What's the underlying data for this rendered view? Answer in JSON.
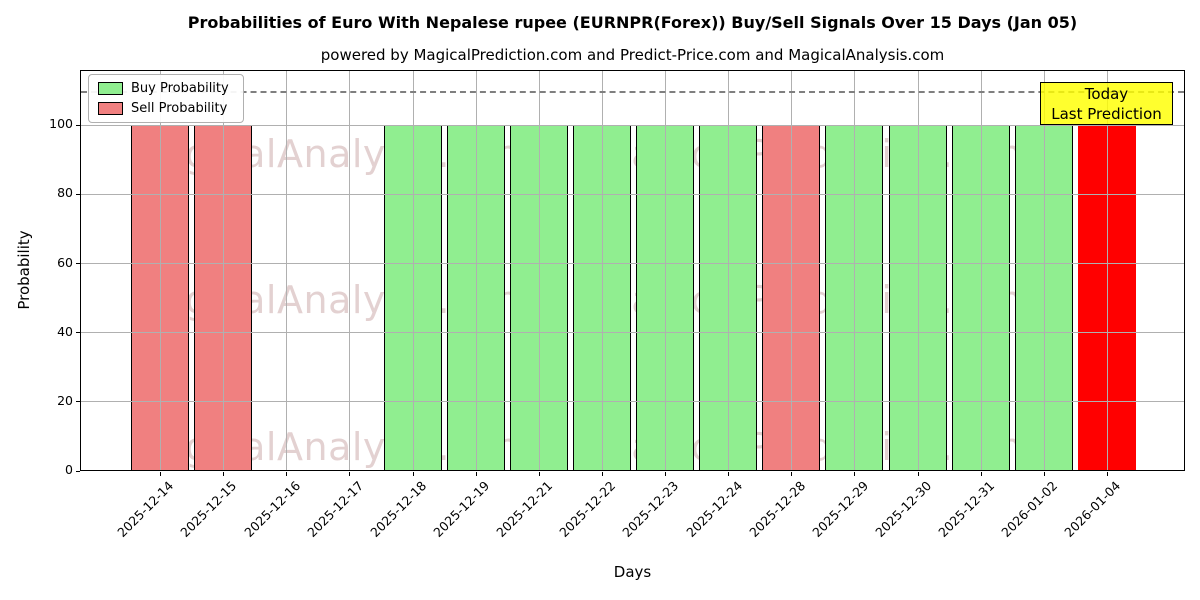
{
  "figure": {
    "title": "Probabilities of Euro With Nepalese rupee (EURNPR(Forex)) Buy/Sell Signals Over 15 Days (Jan 05)",
    "subtitle": "powered by MagicalPrediction.com and Predict-Price.com and MagicalAnalysis.com"
  },
  "legend": {
    "items": [
      {
        "label": "Buy Probability",
        "key": "buy"
      },
      {
        "label": "Sell Probability",
        "key": "sell"
      }
    ]
  },
  "annotation": {
    "line1": "Today",
    "line2": "Last Prediction"
  },
  "watermarks": [
    "MagicalAnalysis.com",
    "MagicalPrediction.com"
  ],
  "chart_data": {
    "type": "bar",
    "title": "Probabilities of Euro With Nepalese rupee (EURNPR(Forex)) Buy/Sell Signals Over 15 Days (Jan 05)",
    "subtitle": "powered by MagicalPrediction.com and Predict-Price.com and MagicalAnalysis.com",
    "xlabel": "Days",
    "ylabel": "Probability",
    "ylim": [
      0,
      116
    ],
    "yticks": [
      0,
      20,
      40,
      60,
      80,
      100
    ],
    "dashed_hline": 110,
    "grid": true,
    "legend_position": "upper left",
    "categories": [
      "2025-12-14",
      "2025-12-15",
      "2025-12-16",
      "2025-12-17",
      "2025-12-18",
      "2025-12-19",
      "2025-12-21",
      "2025-12-22",
      "2025-12-23",
      "2025-12-24",
      "2025-12-28",
      "2025-12-29",
      "2025-12-30",
      "2025-12-31",
      "2026-01-02",
      "2026-01-04"
    ],
    "series": [
      {
        "name": "Buy Probability",
        "color": "#90EE90",
        "values": [
          0,
          0,
          0,
          0,
          100,
          100,
          100,
          100,
          100,
          100,
          0,
          100,
          100,
          100,
          100,
          0
        ]
      },
      {
        "name": "Sell Probability",
        "color": "#F08080",
        "values": [
          100,
          100,
          0,
          0,
          0,
          0,
          0,
          0,
          0,
          0,
          100,
          0,
          0,
          0,
          0,
          0
        ]
      },
      {
        "name": "Today Last Prediction",
        "color": "#FF0000",
        "values": [
          0,
          0,
          0,
          0,
          0,
          0,
          0,
          0,
          0,
          0,
          0,
          0,
          0,
          0,
          0,
          100
        ]
      }
    ],
    "colors": {
      "buy": "#90EE90",
      "sell": "#F08080",
      "today": "#FF0000",
      "annotation_bg": "#FFFF00",
      "grid": "#B0B0B0",
      "watermark_rgba": "rgba(170,115,115,0.33)"
    }
  }
}
